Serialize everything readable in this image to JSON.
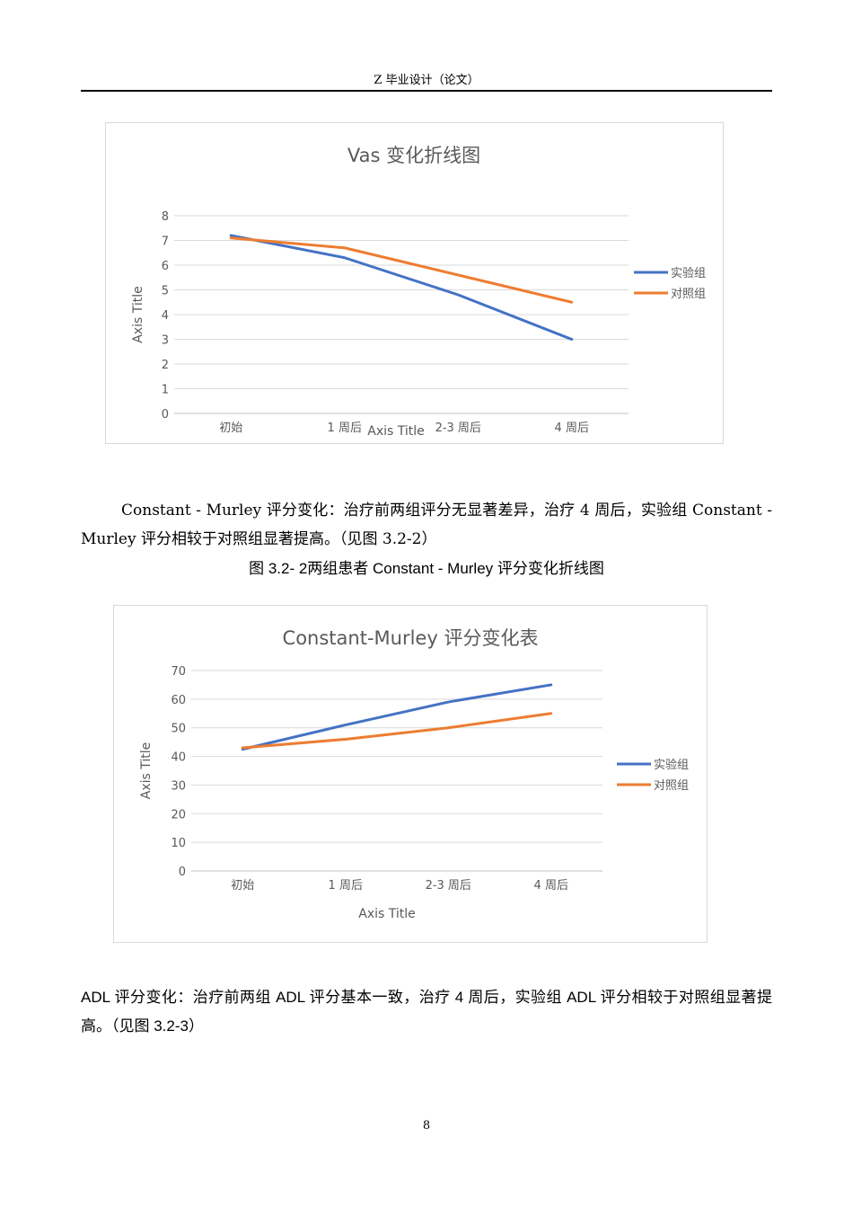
{
  "header": {
    "title": "Z 毕业设计（论文）"
  },
  "charts": [
    {
      "type": "line",
      "title": "Vas 变化折线图",
      "categories": [
        "初始",
        "1 周后",
        "2-3 周后",
        "4 周后"
      ],
      "series": [
        {
          "name": "实验组",
          "color": "#4472C4",
          "values": [
            7.2,
            6.3,
            4.8,
            3.0
          ]
        },
        {
          "name": "对照组",
          "color": "#ED7D31",
          "values": [
            7.1,
            6.7,
            5.6,
            4.5
          ]
        }
      ],
      "xlabel": "Axis Title",
      "ylabel": "Axis Title",
      "ylim": [
        0,
        8
      ],
      "yticks": [
        0,
        1,
        2,
        3,
        4,
        5,
        6,
        7,
        8
      ],
      "grid": true,
      "legend": "right"
    },
    {
      "type": "line",
      "title": "Constant-Murley 评分变化表",
      "categories": [
        "初始",
        "1 周后",
        "2-3 周后",
        "4 周后"
      ],
      "series": [
        {
          "name": "实验组",
          "color": "#4472C4",
          "values": [
            42.5,
            51,
            59,
            65
          ]
        },
        {
          "name": "对照组",
          "color": "#ED7D31",
          "values": [
            43,
            46,
            50,
            55
          ]
        }
      ],
      "xlabel": "Axis Title",
      "ylabel": "Axis Title",
      "ylim": [
        0,
        70
      ],
      "yticks": [
        0,
        10,
        20,
        30,
        40,
        50,
        60,
        70
      ],
      "grid": true,
      "legend": "right"
    }
  ],
  "chart_data": [
    {
      "type": "line",
      "title": "Vas 变化折线图",
      "categories": [
        "初始",
        "1 周后",
        "2-3 周后",
        "4 周后"
      ],
      "series": [
        {
          "name": "实验组",
          "values": [
            7.2,
            6.3,
            4.8,
            3.0
          ]
        },
        {
          "name": "对照组",
          "values": [
            7.1,
            6.7,
            5.6,
            4.5
          ]
        }
      ],
      "xlabel": "Axis Title",
      "ylabel": "Axis Title",
      "ylim": [
        0,
        8
      ]
    },
    {
      "type": "line",
      "title": "Constant-Murley 评分变化表",
      "categories": [
        "初始",
        "1 周后",
        "2-3 周后",
        "4 周后"
      ],
      "series": [
        {
          "name": "实验组",
          "values": [
            42.5,
            51,
            59,
            65
          ]
        },
        {
          "name": "对照组",
          "values": [
            43,
            46,
            50,
            55
          ]
        }
      ],
      "xlabel": "Axis Title",
      "ylabel": "Axis Title",
      "ylim": [
        0,
        70
      ]
    }
  ],
  "body": {
    "paragraph1_part1": "Constant - Murley 评分变化：治疗前两组评分无显著差异，治疗 4 周后，实验组 Constant - Murley 评分相较于对照组显著提高。（见图 3.2-2）",
    "caption": "图 3.2- 2两组患者  Constant - Murley 评分变化折线图",
    "paragraph2": "ADL 评分变化：治疗前两组 ADL 评分基本一致，治疗 4 周后，实验组 ADL 评分相较于对照组显著提高。（见图 3.2-3）"
  },
  "footer": {
    "page_number": "8"
  }
}
